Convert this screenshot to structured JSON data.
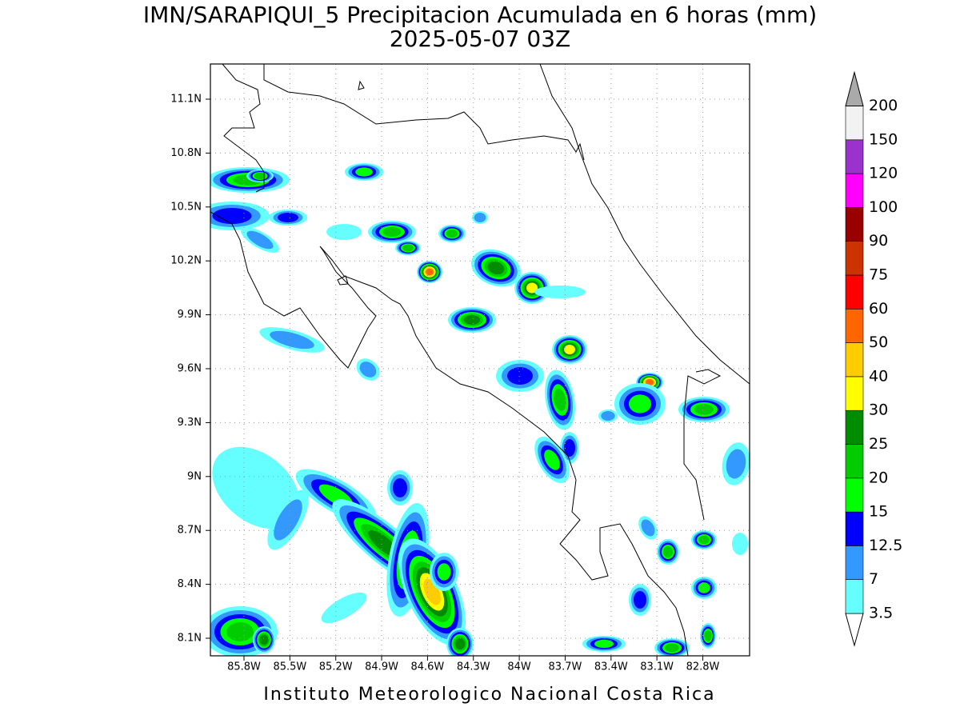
{
  "title": "IMN/SARAPIQUI_5 Precipitacion Acumulada en 6 horas (mm)",
  "subtitle": "2025-05-07 03Z",
  "map": {
    "lon_labels": [
      "85.8W",
      "85.5W",
      "85.2W",
      "84.9W",
      "84.6W",
      "84.3W",
      "84W",
      "83.7W",
      "83.4W",
      "83.1W",
      "82.8W"
    ],
    "lat_labels": [
      "11.1N",
      "10.8N",
      "10.5N",
      "10.2N",
      "9.9N",
      "9.6N",
      "9.3N",
      "9N",
      "8.7N",
      "8.4N",
      "8.1N"
    ]
  },
  "colorbar": {
    "levels": [
      3.5,
      7,
      12.5,
      15,
      20,
      25,
      30,
      40,
      50,
      60,
      75,
      90,
      100,
      120,
      150,
      200
    ],
    "colors": [
      "#ffffff",
      "#66ffff",
      "#3399ff",
      "#0000ff",
      "#00ff00",
      "#00cc00",
      "#008c00",
      "#ffff00",
      "#ffcc00",
      "#ff6600",
      "#ff0000",
      "#cc3300",
      "#990000",
      "#ff00ff",
      "#9933cc",
      "#f2f2f2",
      "#aaaaaa"
    ]
  },
  "footer": "Instituto Meteorologico Nacional Costa Rica"
}
